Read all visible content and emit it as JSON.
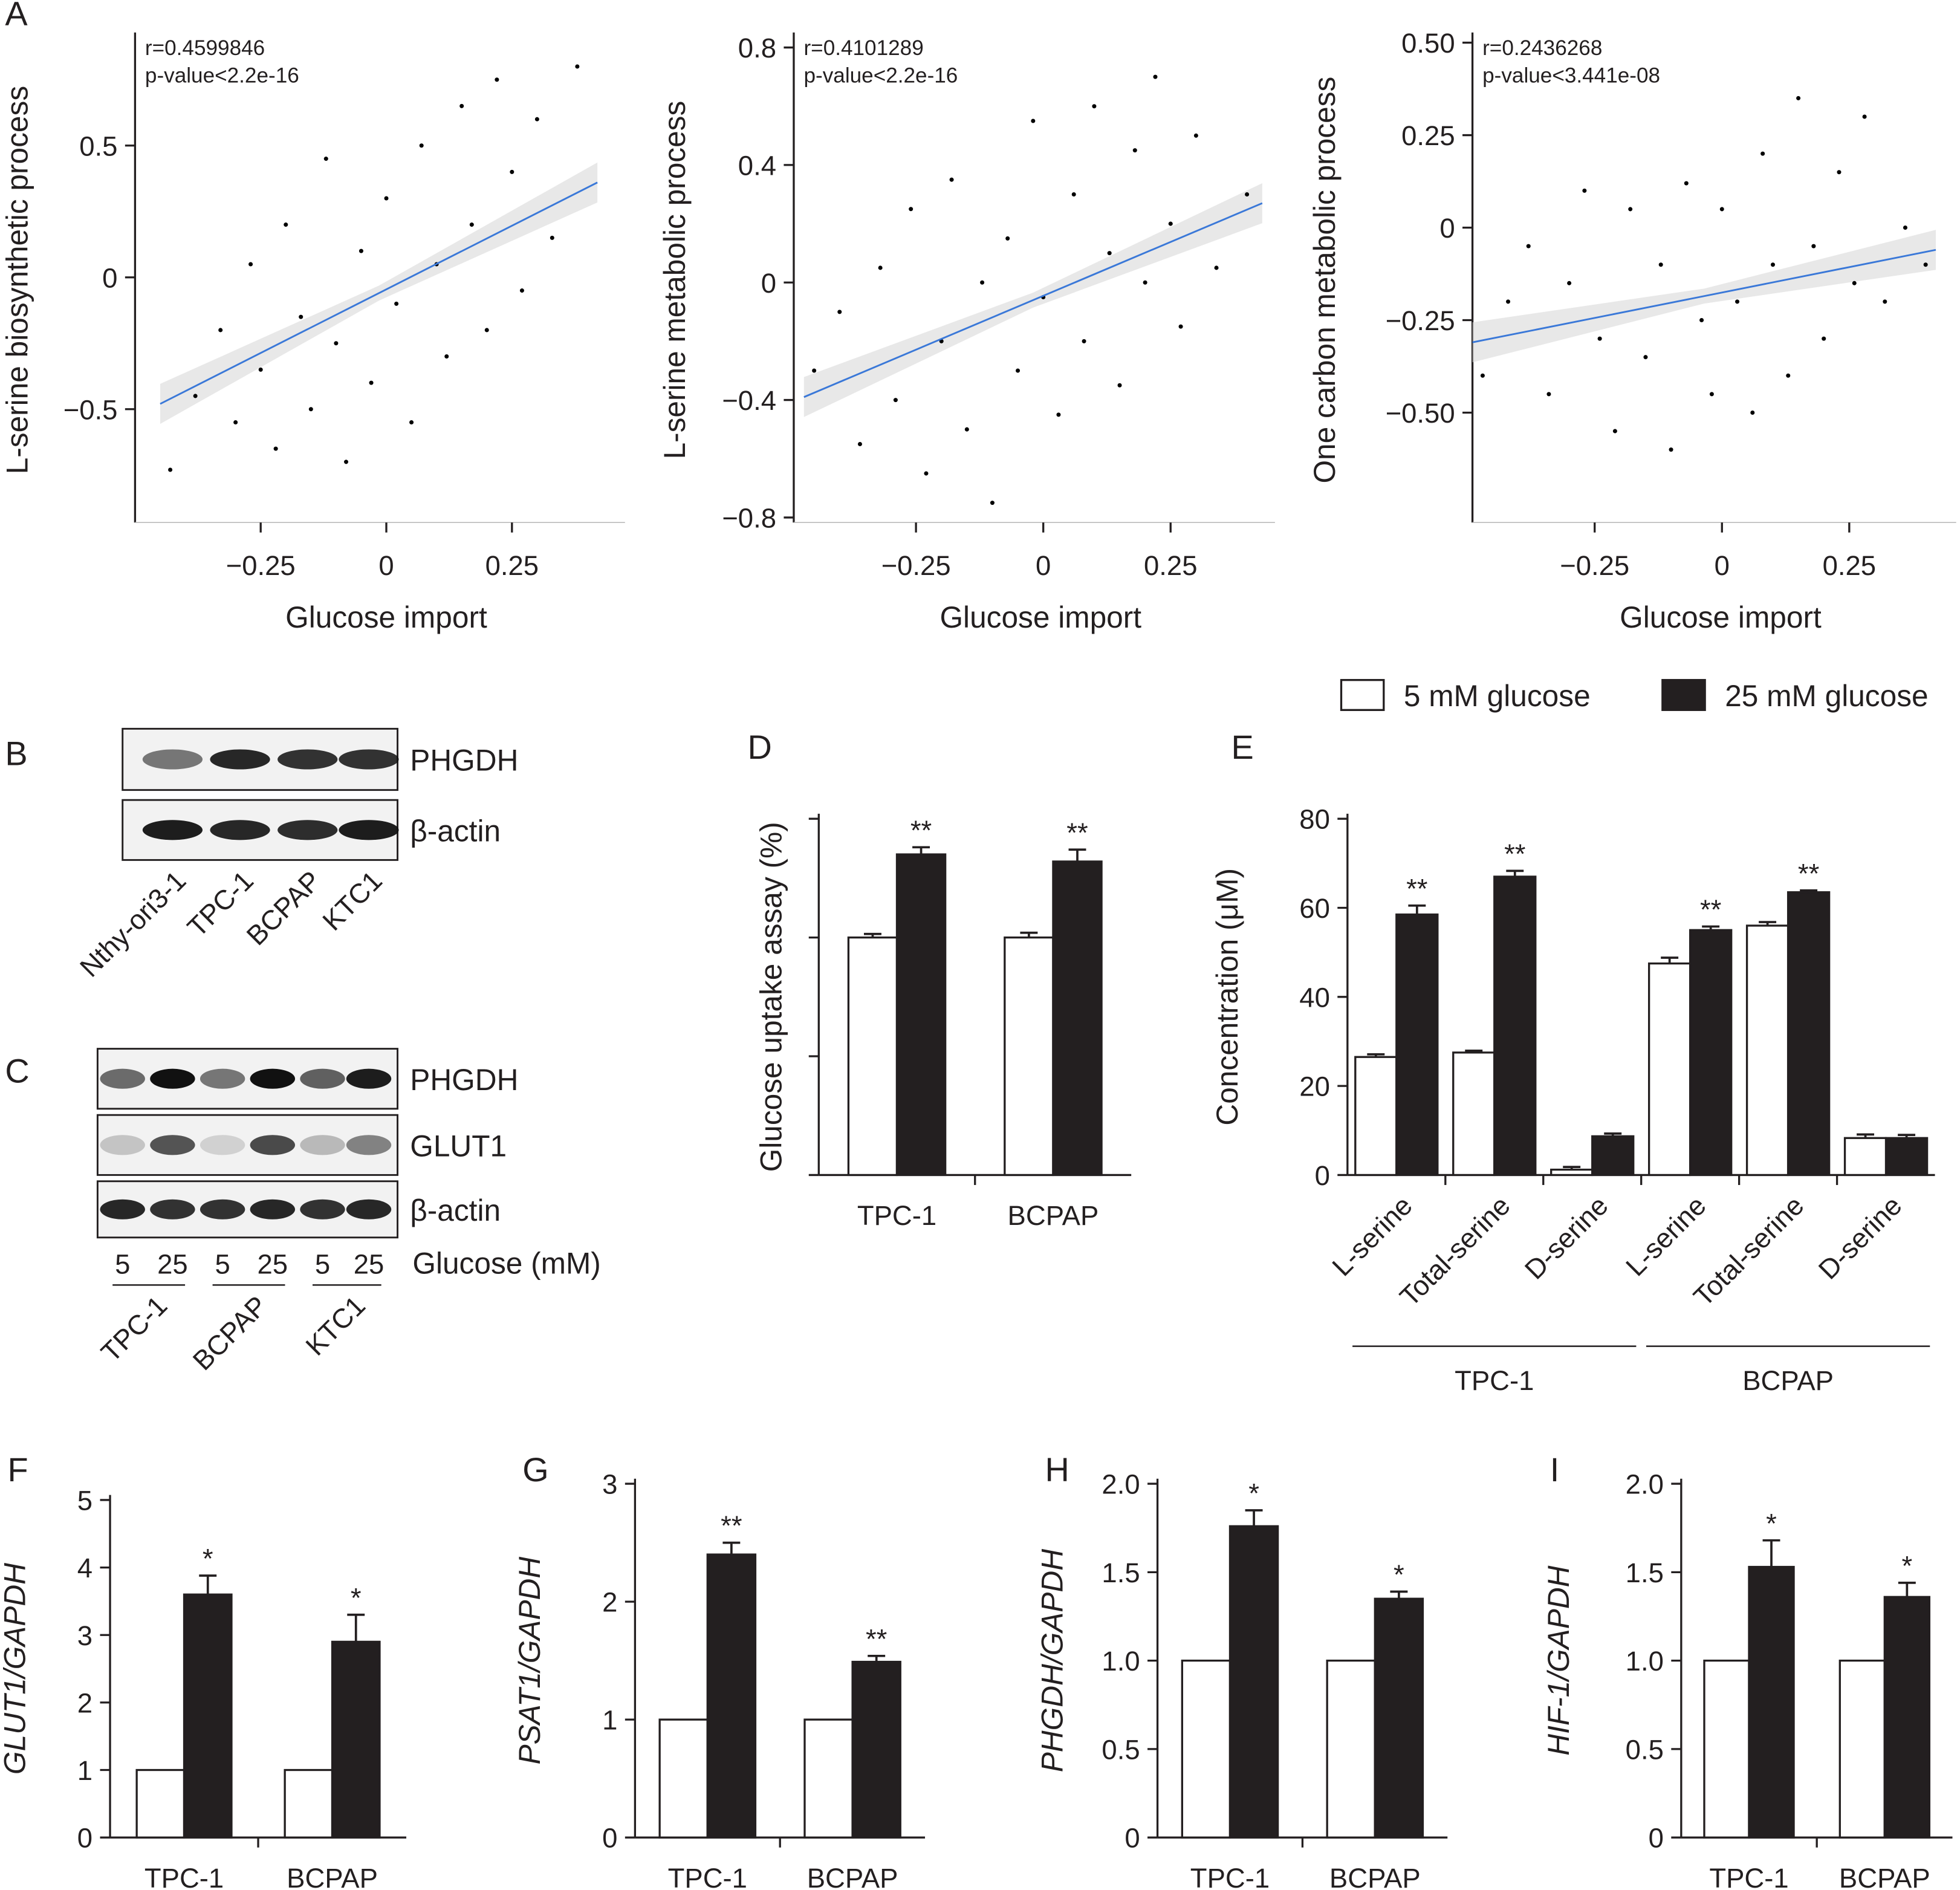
{
  "chart_data": [
    {
      "type": "scatter",
      "panel": "A",
      "xlabel": "Glucose import",
      "ylabel": "L-serine biosynthetic process",
      "annotations": [
        "r=0.4599846",
        "p-value<2.2e-16"
      ],
      "x": [
        -0.43,
        -0.38,
        -0.33,
        -0.3,
        -0.27,
        -0.25,
        -0.22,
        -0.2,
        -0.17,
        -0.15,
        -0.12,
        -0.1,
        -0.08,
        -0.05,
        -0.03,
        0,
        0.02,
        0.05,
        0.07,
        0.1,
        0.12,
        0.15,
        0.17,
        0.2,
        0.22,
        0.25,
        0.27,
        0.3,
        0.33,
        0.38
      ],
      "y": [
        -0.73,
        -0.45,
        -0.2,
        -0.55,
        0.05,
        -0.35,
        -0.65,
        0.2,
        -0.15,
        -0.5,
        0.45,
        -0.25,
        -0.7,
        0.1,
        -0.4,
        0.3,
        -0.1,
        -0.55,
        0.5,
        0.05,
        -0.3,
        0.65,
        0.2,
        -0.2,
        0.75,
        0.4,
        -0.05,
        0.6,
        0.15,
        0.8
      ],
      "trend": {
        "x": [
          -0.45,
          0.42
        ],
        "y": [
          -0.48,
          0.36
        ]
      },
      "color": "#000000",
      "trend_color": "#3a78d8",
      "xlim": [
        -0.5,
        0.475
      ],
      "ylim": [
        -0.93,
        0.91
      ],
      "xticks": [
        {
          "value": -0.25,
          "label": "−0.25"
        },
        0,
        0.25
      ],
      "yticks": [
        {
          "value": -0.5,
          "label": "−0.5"
        },
        0,
        0.5
      ]
    },
    {
      "type": "scatter",
      "xlabel": "Glucose import",
      "ylabel": "L-serine metabolic process",
      "annotations": [
        "r=0.4101289",
        "p-value<2.2e-16"
      ],
      "x": [
        -0.45,
        -0.4,
        -0.36,
        -0.32,
        -0.29,
        -0.26,
        -0.23,
        -0.2,
        -0.18,
        -0.15,
        -0.12,
        -0.1,
        -0.07,
        -0.05,
        -0.02,
        0,
        0.03,
        0.06,
        0.08,
        0.1,
        0.13,
        0.15,
        0.18,
        0.2,
        0.22,
        0.25,
        0.27,
        0.3,
        0.34,
        0.4
      ],
      "y": [
        -0.3,
        -0.1,
        -0.55,
        0.05,
        -0.4,
        0.25,
        -0.65,
        -0.2,
        0.35,
        -0.5,
        0,
        -0.75,
        0.15,
        -0.3,
        0.55,
        -0.05,
        -0.45,
        0.3,
        -0.2,
        0.6,
        0.1,
        -0.35,
        0.45,
        0,
        0.7,
        0.2,
        -0.15,
        0.5,
        0.05,
        0.3
      ],
      "trend": {
        "x": [
          -0.47,
          0.43
        ],
        "y": [
          -0.39,
          0.27
        ]
      },
      "color": "#000000",
      "trend_color": "#3a78d8",
      "xlim": [
        -0.49,
        0.455
      ],
      "ylim": [
        -0.817,
        0.834
      ],
      "xticks": [
        {
          "value": -0.25,
          "label": "−0.25"
        },
        0,
        0.25
      ],
      "yticks": [
        {
          "value": -0.8,
          "label": "−0.8"
        },
        {
          "value": -0.4,
          "label": "−0.4"
        },
        0,
        0.4,
        0.8
      ]
    },
    {
      "type": "scatter",
      "xlabel": "Glucose import",
      "ylabel": "One carbon metabolic process",
      "annotations": [
        "r=0.2436268",
        "p-value<3.441e-08"
      ],
      "x": [
        -0.47,
        -0.42,
        -0.38,
        -0.34,
        -0.3,
        -0.27,
        -0.24,
        -0.21,
        -0.18,
        -0.15,
        -0.12,
        -0.1,
        -0.07,
        -0.04,
        -0.02,
        0,
        0.03,
        0.06,
        0.08,
        0.1,
        0.13,
        0.15,
        0.18,
        0.2,
        0.23,
        0.26,
        0.28,
        0.32,
        0.36,
        0.4
      ],
      "y": [
        -0.4,
        -0.2,
        -0.05,
        -0.45,
        -0.15,
        0.1,
        -0.3,
        -0.55,
        0.05,
        -0.35,
        -0.1,
        -0.6,
        0.12,
        -0.25,
        -0.45,
        0.05,
        -0.2,
        -0.5,
        0.2,
        -0.1,
        -0.4,
        0.35,
        -0.05,
        -0.3,
        0.15,
        -0.15,
        0.3,
        -0.2,
        0,
        -0.1
      ],
      "trend": {
        "x": [
          -0.49,
          0.42
        ],
        "y": [
          -0.31,
          -0.06
        ]
      },
      "color": "#000000",
      "trend_color": "#3a78d8",
      "xlim": [
        -0.49,
        0.46
      ],
      "ylim": [
        -0.797,
        0.514
      ],
      "xticks": [
        {
          "value": -0.25,
          "label": "−0.25"
        },
        0,
        0.25
      ],
      "yticks": [
        {
          "value": -0.5,
          "label": "−0.50"
        },
        {
          "value": -0.25,
          "label": "−0.25"
        },
        0,
        0.25,
        {
          "value": 0.5,
          "label": "0.50"
        }
      ]
    },
    {
      "type": "bar",
      "panel": "D",
      "ylabel": "Glucose uptake assay (%)",
      "categories": [
        "TPC-1",
        "BCPAP"
      ],
      "series": [
        {
          "color": "#ffffff",
          "values": [
            100,
            100
          ],
          "errors": [
            1.5,
            2
          ]
        },
        {
          "color": "#231f20",
          "values": [
            135,
            132
          ],
          "errors": [
            3,
            5
          ],
          "significance": [
            "**",
            "**"
          ]
        }
      ],
      "ylim": [
        0,
        150
      ],
      "yticks": [
        0,
        50,
        100,
        150
      ],
      "ytick_labels": false
    },
    {
      "type": "bar",
      "panel": "E",
      "ylabel": "Concentration (μM)",
      "categories": [
        "L-serine",
        "Total-serine",
        "D-serine",
        "L-serine",
        "Total-serine",
        "D-serine"
      ],
      "groups": [
        "TPC-1",
        "BCPAP"
      ],
      "rotate_labels": true,
      "legend": "above",
      "series": [
        {
          "name": "5 mM glucose",
          "color": "#ffffff",
          "values": [
            26.5,
            27.5,
            1.2,
            47.5,
            56,
            8.3
          ],
          "errors": [
            0.6,
            0.4,
            0.6,
            1.3,
            0.8,
            0.8
          ]
        },
        {
          "name": "25 mM glucose",
          "color": "#231f20",
          "values": [
            58.5,
            67,
            8.7,
            55,
            63.5,
            8.3
          ],
          "errors": [
            2,
            1.3,
            0.6,
            0.8,
            0.4,
            0.7
          ],
          "significance": [
            "**",
            "**",
            null,
            "**",
            "**",
            null
          ]
        }
      ],
      "ylim": [
        0,
        80
      ],
      "yticks": [
        0,
        20,
        40,
        60,
        80
      ]
    },
    {
      "type": "bar",
      "panel": "F",
      "ylabel": "GLUT1/GAPDH",
      "ylabel_italic": true,
      "categories": [
        "TPC-1",
        "BCPAP"
      ],
      "series": [
        {
          "color": "#ffffff",
          "values": [
            1,
            1
          ]
        },
        {
          "color": "#231f20",
          "values": [
            3.6,
            2.9
          ],
          "errors": [
            0.28,
            0.4
          ],
          "significance": [
            "*",
            "*"
          ]
        }
      ],
      "ylim": [
        0,
        5
      ],
      "yticks": [
        0,
        1,
        2,
        3,
        4,
        5
      ]
    },
    {
      "type": "bar",
      "panel": "G",
      "ylabel": "PSAT1/GAPDH",
      "ylabel_italic": true,
      "categories": [
        "TPC-1",
        "BCPAP"
      ],
      "series": [
        {
          "color": "#ffffff",
          "values": [
            1,
            1
          ]
        },
        {
          "color": "#231f20",
          "values": [
            2.4,
            1.49
          ],
          "errors": [
            0.1,
            0.05
          ],
          "significance": [
            "**",
            "**"
          ]
        }
      ],
      "ylim": [
        0,
        3
      ],
      "yticks": [
        0,
        1,
        2,
        3
      ]
    },
    {
      "type": "bar",
      "panel": "H",
      "ylabel": "PHGDH/GAPDH",
      "ylabel_italic": true,
      "categories": [
        "TPC-1",
        "BCPAP"
      ],
      "series": [
        {
          "color": "#ffffff",
          "values": [
            1,
            1
          ]
        },
        {
          "color": "#231f20",
          "values": [
            1.76,
            1.35
          ],
          "errors": [
            0.09,
            0.04
          ],
          "significance": [
            "*",
            "*"
          ]
        }
      ],
      "ylim": [
        0,
        2
      ],
      "yticks": [
        0,
        0.5,
        {
          "value": 1,
          "label": "1.0"
        },
        1.5,
        {
          "value": 2,
          "label": "2.0"
        }
      ]
    },
    {
      "type": "bar",
      "panel": "I",
      "ylabel": "HIF-1/GAPDH",
      "ylabel_italic": true,
      "categories": [
        "TPC-1",
        "BCPAP"
      ],
      "series": [
        {
          "color": "#ffffff",
          "values": [
            1,
            1
          ]
        },
        {
          "color": "#231f20",
          "values": [
            1.53,
            1.36
          ],
          "errors": [
            0.15,
            0.08
          ],
          "significance": [
            "*",
            "*"
          ]
        }
      ],
      "ylim": [
        0,
        2
      ],
      "yticks": [
        0,
        0.5,
        {
          "value": 1,
          "label": "1.0"
        },
        1.5,
        {
          "value": 2,
          "label": "2.0"
        }
      ]
    }
  ],
  "blots": [
    {
      "panel": "B",
      "rows": [
        "PHGDH",
        "β-actin"
      ],
      "lanes": [
        "Nthy-ori3-1",
        "TPC-1",
        "BCPAP",
        "KTC1"
      ]
    },
    {
      "panel": "C",
      "rows": [
        "PHGDH",
        "GLUT1",
        "β-actin"
      ],
      "lane_values": [
        "5",
        "25",
        "5",
        "25",
        "5",
        "25"
      ],
      "lane_caption": "Glucose (mM)",
      "groups": [
        "TPC-1",
        "BCPAP",
        "KTC1"
      ]
    }
  ]
}
